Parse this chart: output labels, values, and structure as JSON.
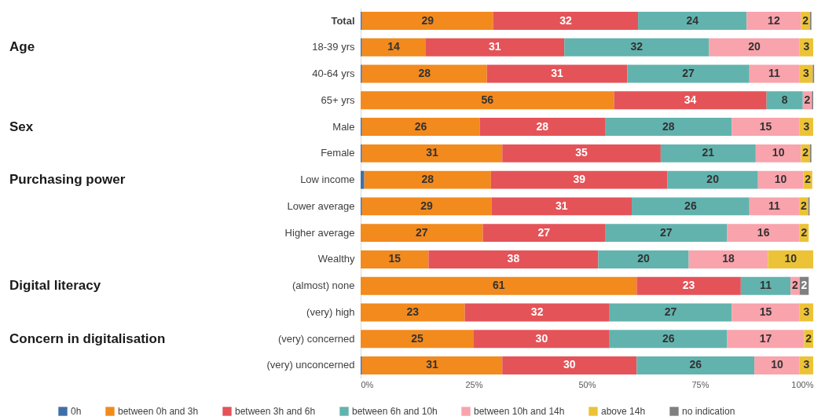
{
  "chart_data": {
    "type": "bar",
    "orientation": "horizontal",
    "stacked": true,
    "categories": [
      "Total",
      "18-39 yrs",
      "40-64 yrs",
      "65+ yrs",
      "Male",
      "Female",
      "Low income",
      "Lower average",
      "Higher average",
      "Wealthy",
      "(almost) none",
      "(very) high",
      "(very) concerned",
      "(very) unconcerned"
    ],
    "series": [
      {
        "name": "0h",
        "color": "#3f6fa8",
        "values": [
          0.3,
          0.3,
          0.3,
          null,
          0.3,
          0.3,
          0.8,
          0.3,
          null,
          null,
          null,
          null,
          null,
          0.3
        ],
        "value_labels": [
          null,
          null,
          null,
          null,
          null,
          null,
          null,
          null,
          null,
          null,
          null,
          null,
          null,
          null
        ]
      },
      {
        "name": "between 0h and 3h",
        "color": "#f28a1e",
        "values": [
          29,
          14,
          27.6,
          56,
          26,
          31,
          28,
          28.6,
          27,
          15,
          61,
          23,
          25,
          31
        ],
        "value_labels": [
          "29",
          "14",
          "28",
          "56",
          "26",
          "31",
          "28",
          "29",
          "27",
          "15",
          "61",
          "23",
          "25",
          "31"
        ]
      },
      {
        "name": "between 3h and 6h",
        "color": "#e45358",
        "values": [
          32,
          30.7,
          31,
          33.7,
          27.7,
          35,
          39,
          31,
          27,
          37.5,
          23,
          32,
          30,
          29.7
        ],
        "value_labels": [
          "32",
          "31",
          "31",
          "34",
          "28",
          "35",
          "39",
          "31",
          "27",
          "38",
          "23",
          "32",
          "30",
          "30"
        ]
      },
      {
        "name": "between 6h and 10h",
        "color": "#62b3ae",
        "values": [
          24,
          32,
          27,
          8,
          28,
          21,
          20,
          26,
          27,
          20,
          11,
          27,
          26,
          26
        ],
        "value_labels": [
          "24",
          "32",
          "27",
          "8",
          "28",
          "21",
          "20",
          "26",
          "27",
          "20",
          "11",
          "27",
          "26",
          "26"
        ]
      },
      {
        "name": "between 10h and 14h",
        "color": "#f9a3ac",
        "values": [
          12,
          20,
          11,
          2,
          15,
          10,
          10,
          11,
          16,
          17.5,
          2,
          15,
          17,
          10
        ],
        "value_labels": [
          "12",
          "20",
          "11",
          "2",
          "15",
          "10",
          "10",
          "11",
          "16",
          "18",
          "2",
          "15",
          "17",
          "10"
        ]
      },
      {
        "name": "above 14h",
        "color": "#ecc336",
        "values": [
          2,
          3,
          3,
          null,
          3,
          2,
          2,
          2,
          2,
          10,
          null,
          3,
          2,
          3
        ],
        "value_labels": [
          "2",
          "3",
          "3",
          null,
          "3",
          "2",
          "2",
          "2",
          "2",
          "10",
          null,
          "3",
          "2",
          "3"
        ]
      },
      {
        "name": "no indication",
        "color": "#808080",
        "values": [
          0.3,
          null,
          0.3,
          0.3,
          null,
          0.3,
          null,
          0.3,
          null,
          null,
          2,
          null,
          null,
          null
        ],
        "value_labels": [
          null,
          null,
          null,
          null,
          null,
          null,
          null,
          null,
          null,
          null,
          "2",
          null,
          null,
          null
        ]
      }
    ],
    "xlim": [
      0,
      100
    ],
    "xticks": [
      {
        "value": 0,
        "label": "0%"
      },
      {
        "value": 25,
        "label": "25%"
      },
      {
        "value": 50,
        "label": "50%"
      },
      {
        "value": 75,
        "label": "75%"
      },
      {
        "value": 100,
        "label": "100%"
      }
    ],
    "annotations": [
      "Age",
      "Sex",
      "Purchasing power",
      "Digital literacy",
      "Concern in digitalisation"
    ],
    "legend": "bottom",
    "grid": false
  }
}
